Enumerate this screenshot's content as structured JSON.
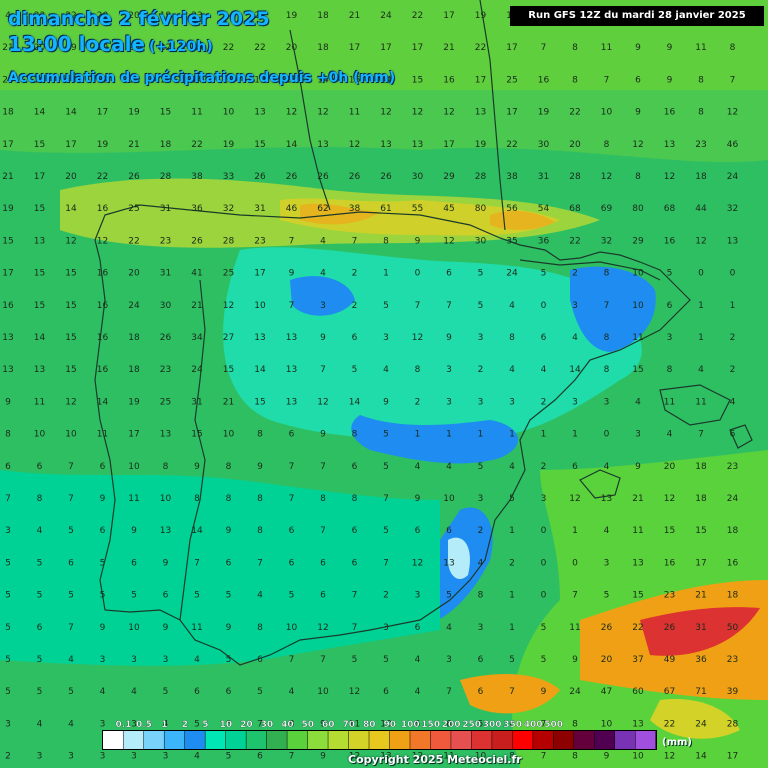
{
  "header": {
    "date": "dimanche 2 février 2025",
    "time": "13:00 locale",
    "lead": "(+120h)",
    "parameter": "Accumulation de précipitations depuis +0h (mm)",
    "run": "Run GFS 12Z du mardi 28 janvier 2025"
  },
  "legend": {
    "unit": "(mm)",
    "thresholds": [
      "0.1",
      "0.5",
      "1",
      "2",
      "5",
      "10",
      "20",
      "30",
      "40",
      "50",
      "60",
      "70",
      "80",
      "90",
      "100",
      "150",
      "200",
      "250",
      "300",
      "350",
      "400",
      "500"
    ],
    "colors": [
      "#ffffff",
      "#b4ecfa",
      "#78d2fa",
      "#3cb4fa",
      "#1e8cf0",
      "#00e6b4",
      "#00d296",
      "#1ec36e",
      "#32af50",
      "#5ad23c",
      "#8cdc3c",
      "#b4dc32",
      "#d2d228",
      "#e6c81e",
      "#f0a014",
      "#f07828",
      "#f05a3c",
      "#e65050",
      "#dc3232",
      "#c81e1e",
      "#ff0000",
      "#b40000",
      "#8c0000",
      "#64003c",
      "#500050",
      "#7832b4",
      "#a050dc"
    ]
  },
  "footer": {
    "copyright": "Copyright 2025 Meteociel.fr"
  },
  "grid": {
    "rows": [
      [
        "4",
        "23",
        "22",
        "20",
        "20",
        "19",
        "23",
        "24",
        "22",
        "19",
        "18",
        "21",
        "24",
        "22",
        "17",
        "19",
        "16",
        "17",
        "14",
        "13",
        "15",
        "14",
        "15",
        "13"
      ],
      [
        "21",
        "20",
        "19",
        "19",
        "20",
        "22",
        "19",
        "22",
        "22",
        "20",
        "18",
        "17",
        "17",
        "17",
        "21",
        "22",
        "17",
        "7",
        "8",
        "11",
        "9",
        "9",
        "11",
        "8"
      ],
      [
        "20",
        "19",
        "19",
        "18",
        "18",
        "16",
        "14",
        "14",
        "12",
        "15",
        "14",
        "16",
        "14",
        "15",
        "16",
        "17",
        "25",
        "16",
        "8",
        "7",
        "6",
        "9",
        "8",
        "7"
      ],
      [
        "18",
        "14",
        "14",
        "17",
        "19",
        "15",
        "11",
        "10",
        "13",
        "12",
        "12",
        "11",
        "12",
        "12",
        "12",
        "13",
        "17",
        "19",
        "22",
        "10",
        "9",
        "16",
        "8",
        "12"
      ],
      [
        "17",
        "15",
        "17",
        "19",
        "21",
        "18",
        "22",
        "19",
        "15",
        "14",
        "13",
        "12",
        "13",
        "13",
        "17",
        "19",
        "22",
        "30",
        "20",
        "8",
        "12",
        "13",
        "23",
        "46"
      ],
      [
        "21",
        "17",
        "20",
        "22",
        "26",
        "28",
        "38",
        "33",
        "26",
        "26",
        "26",
        "26",
        "26",
        "30",
        "29",
        "28",
        "38",
        "31",
        "28",
        "12",
        "8",
        "12",
        "18",
        "24"
      ],
      [
        "19",
        "15",
        "14",
        "16",
        "25",
        "31",
        "36",
        "32",
        "31",
        "46",
        "62",
        "38",
        "61",
        "55",
        "45",
        "80",
        "56",
        "54",
        "68",
        "69",
        "80",
        "68",
        "44",
        "32"
      ],
      [
        "15",
        "13",
        "12",
        "12",
        "22",
        "23",
        "26",
        "28",
        "23",
        "7",
        "4",
        "7",
        "8",
        "9",
        "12",
        "30",
        "35",
        "36",
        "22",
        "32",
        "29",
        "16",
        "12",
        "13"
      ],
      [
        "17",
        "15",
        "15",
        "16",
        "20",
        "31",
        "41",
        "25",
        "17",
        "9",
        "4",
        "2",
        "1",
        "0",
        "6",
        "5",
        "24",
        "5",
        "2",
        "8",
        "10",
        "5",
        "0",
        "0"
      ],
      [
        "16",
        "15",
        "15",
        "16",
        "24",
        "30",
        "21",
        "12",
        "10",
        "7",
        "3",
        "2",
        "5",
        "7",
        "7",
        "5",
        "4",
        "0",
        "3",
        "7",
        "10",
        "6",
        "1",
        "1"
      ],
      [
        "13",
        "14",
        "15",
        "16",
        "18",
        "26",
        "34",
        "27",
        "13",
        "13",
        "9",
        "6",
        "3",
        "12",
        "9",
        "3",
        "8",
        "6",
        "4",
        "8",
        "11",
        "3",
        "1",
        "2"
      ],
      [
        "13",
        "13",
        "15",
        "16",
        "18",
        "23",
        "24",
        "15",
        "14",
        "13",
        "7",
        "5",
        "4",
        "8",
        "3",
        "2",
        "4",
        "4",
        "14",
        "8",
        "15",
        "8",
        "4",
        "2"
      ],
      [
        "9",
        "11",
        "12",
        "14",
        "19",
        "25",
        "31",
        "21",
        "15",
        "13",
        "12",
        "14",
        "9",
        "2",
        "3",
        "3",
        "3",
        "2",
        "3",
        "3",
        "4",
        "11",
        "11",
        "4"
      ],
      [
        "8",
        "10",
        "10",
        "11",
        "17",
        "13",
        "15",
        "10",
        "8",
        "6",
        "9",
        "8",
        "5",
        "1",
        "1",
        "1",
        "1",
        "1",
        "1",
        "0",
        "3",
        "4",
        "7",
        "6"
      ],
      [
        "6",
        "6",
        "7",
        "6",
        "10",
        "8",
        "9",
        "8",
        "9",
        "7",
        "7",
        "6",
        "5",
        "4",
        "4",
        "5",
        "4",
        "2",
        "6",
        "4",
        "9",
        "20",
        "18",
        "23"
      ],
      [
        "7",
        "8",
        "7",
        "9",
        "11",
        "10",
        "8",
        "8",
        "8",
        "7",
        "8",
        "8",
        "7",
        "9",
        "10",
        "3",
        "5",
        "3",
        "12",
        "13",
        "21",
        "12",
        "18",
        "24"
      ],
      [
        "3",
        "4",
        "5",
        "6",
        "9",
        "13",
        "14",
        "9",
        "8",
        "6",
        "7",
        "6",
        "5",
        "6",
        "6",
        "2",
        "1",
        "0",
        "1",
        "4",
        "11",
        "15",
        "15",
        "18"
      ],
      [
        "5",
        "5",
        "6",
        "5",
        "6",
        "9",
        "7",
        "6",
        "7",
        "6",
        "6",
        "6",
        "7",
        "12",
        "13",
        "4",
        "2",
        "0",
        "0",
        "3",
        "13",
        "16",
        "17",
        "16"
      ],
      [
        "5",
        "5",
        "5",
        "5",
        "5",
        "6",
        "5",
        "5",
        "4",
        "5",
        "6",
        "7",
        "2",
        "3",
        "5",
        "8",
        "1",
        "0",
        "7",
        "5",
        "15",
        "23",
        "21",
        "18"
      ],
      [
        "5",
        "6",
        "7",
        "9",
        "10",
        "9",
        "11",
        "9",
        "8",
        "10",
        "12",
        "7",
        "3",
        "6",
        "4",
        "3",
        "1",
        "5",
        "11",
        "26",
        "22",
        "26",
        "31",
        "50"
      ],
      [
        "5",
        "5",
        "4",
        "3",
        "3",
        "3",
        "4",
        "5",
        "6",
        "7",
        "7",
        "5",
        "5",
        "4",
        "3",
        "6",
        "5",
        "5",
        "9",
        "20",
        "37",
        "49",
        "36",
        "23"
      ],
      [
        "5",
        "5",
        "5",
        "4",
        "4",
        "5",
        "6",
        "6",
        "5",
        "4",
        "10",
        "12",
        "6",
        "4",
        "7",
        "6",
        "7",
        "9",
        "24",
        "47",
        "60",
        "67",
        "71",
        "39"
      ],
      [
        "3",
        "4",
        "4",
        "3",
        "3",
        "4",
        "5",
        "6",
        "7",
        "8",
        "9",
        "11",
        "10",
        "6",
        "6",
        "5",
        "6",
        "7",
        "8",
        "10",
        "13",
        "22",
        "24",
        "28"
      ],
      [
        "2",
        "3",
        "3",
        "3",
        "3",
        "3",
        "4",
        "5",
        "6",
        "7",
        "9",
        "12",
        "13",
        "12",
        "11",
        "10",
        "8",
        "7",
        "8",
        "9",
        "10",
        "12",
        "14",
        "17"
      ]
    ]
  }
}
